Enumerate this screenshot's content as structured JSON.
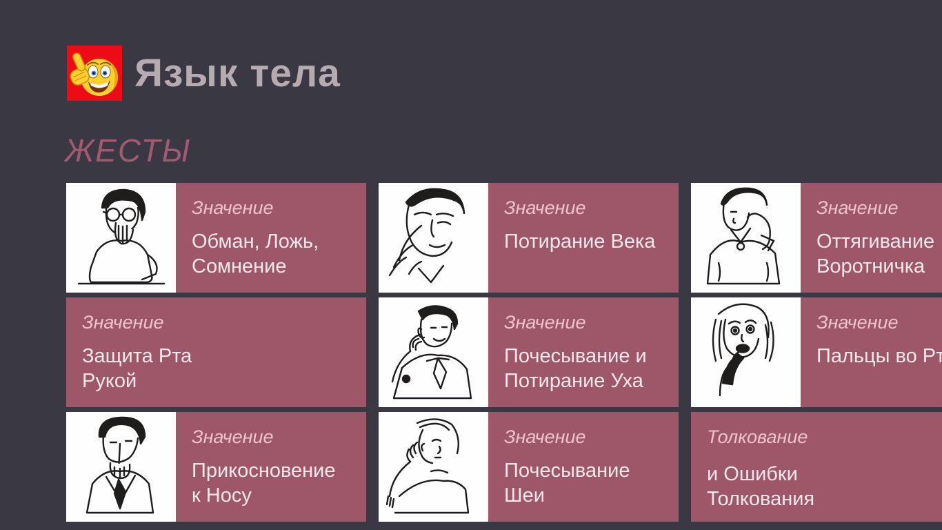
{
  "app": {
    "title": "Язык тела",
    "icon": "thumbs-up-smiley-icon"
  },
  "section": {
    "title": "ЖЕСТЫ"
  },
  "colors": {
    "page_background": "#3A3843",
    "tile_background": "#9D5768",
    "tile_label_text": "#EFC2CD",
    "tile_body_text": "#F8E7EC",
    "app_title_text": "#B7ABB2",
    "section_title_text": "#A25A71",
    "app_icon_background": "#ED0C16"
  },
  "tiles": [
    {
      "label": "Значение",
      "text": "Обман, Ложь,\nСомнение",
      "image": "man-covering-mouth-image"
    },
    {
      "label": "Значение",
      "text": "Потирание Века",
      "image": "man-rubbing-eyelid-image"
    },
    {
      "label": "Значение",
      "text": "Оттягивание\nВоротничка",
      "image": "person-pulling-collar-image"
    },
    {
      "label": "Значение",
      "text": "Защита Рта\nРукой",
      "image": null
    },
    {
      "label": "Значение",
      "text": "Почесывание и\nПотирание Уха",
      "image": "man-scratching-ear-image"
    },
    {
      "label": "Значение",
      "text": "Пальцы во Рту",
      "image": "woman-fingers-in-mouth-image"
    },
    {
      "label": "Значение",
      "text": "Прикосновение\nк Носу",
      "image": "person-touching-nose-image"
    },
    {
      "label": "Значение",
      "text": "Почесывание\nШеи",
      "image": "person-scratching-neck-image"
    },
    {
      "label": "Толкование\nЖестов",
      "label_clipped": true,
      "text": "и Ошибки\nТолкования",
      "image": null
    }
  ]
}
